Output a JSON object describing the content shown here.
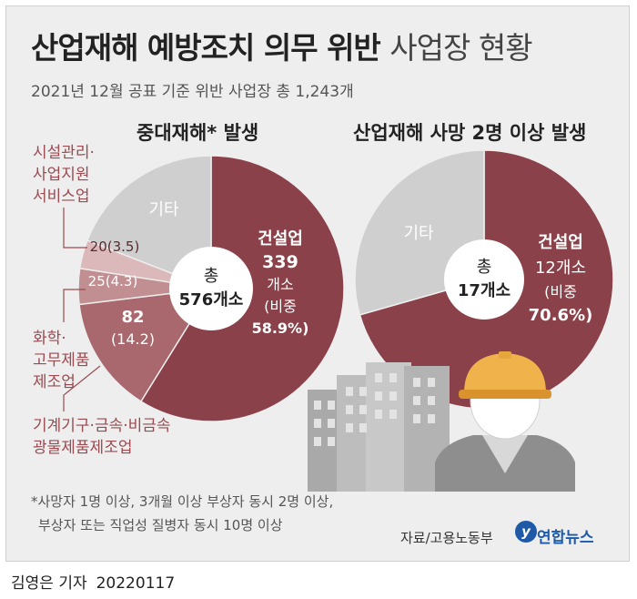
{
  "header": {
    "title_bold": "산업재해 예방조치 의무 위반",
    "title_light": "사업장 현황",
    "subtitle": "2021년 12월 공표 기준 위반 사업장 총 1,243개"
  },
  "chart_data": [
    {
      "type": "pie",
      "title": "중대재해* 발생",
      "total_label": "총",
      "total_value": "576개소",
      "slices": [
        {
          "name": "건설업",
          "value": 339,
          "text_value": "339",
          "text_unit": "개소",
          "share_label": "(비중",
          "share": "58.9%)",
          "color": "#8b4149"
        },
        {
          "name": "기계기구·금속·비금속 광물제품제조업",
          "value": 82,
          "text_value": "82",
          "text_share": "(14.2)",
          "color": "#a9686d"
        },
        {
          "name": "화학·고무제품제조업",
          "value": 25,
          "text_value": "25(4.3)",
          "color": "#c18f92"
        },
        {
          "name": "시설관리·사업지원서비스업",
          "value": 20,
          "text_value": "20(3.5)",
          "color": "#dbb9bb"
        },
        {
          "name": "기타",
          "value": 110,
          "text_value": "기타",
          "color": "#cfcfcf"
        }
      ],
      "category_labels": {
        "facility": [
          "시설관리·",
          "사업지원",
          "서비스업"
        ],
        "chemical": [
          "화학·",
          "고무제품",
          "제조업"
        ],
        "machinery": [
          "기계기구·금속·비금속",
          "광물제품제조업"
        ]
      }
    },
    {
      "type": "pie",
      "title": "산업재해 사망 2명 이상 발생",
      "total_label": "총",
      "total_value": "17개소",
      "slices": [
        {
          "name": "건설업",
          "value": 12,
          "text_value": "12",
          "text_unit": "개소",
          "share_label": "(비중",
          "share": "70.6%)",
          "color": "#8b4149"
        },
        {
          "name": "기타",
          "value": 5,
          "text_value": "기타",
          "color": "#cfcfcf"
        }
      ]
    }
  ],
  "footnote": {
    "line1": "*사망자 1명 이상, 3개월 이상 부상자 동시 2명 이상,",
    "line2": "부상자 또는 직업성 질병자 동시 10명 이상"
  },
  "source": "자료/고용노동부",
  "agency": "연합뉴스",
  "agency_mark": "y",
  "byline": {
    "reporter": "김영은 기자",
    "date": "20220117"
  }
}
